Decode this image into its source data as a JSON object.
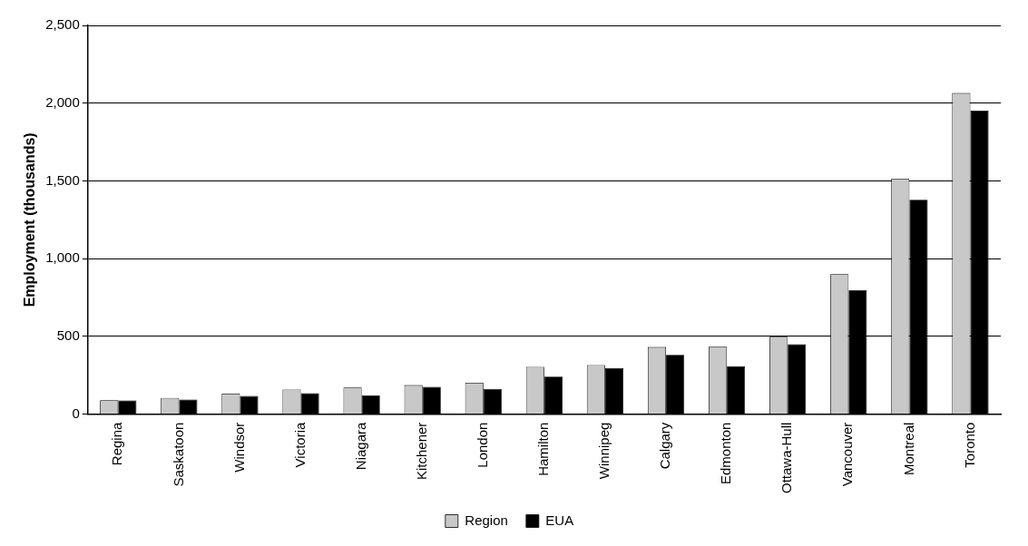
{
  "chart_data": {
    "type": "bar",
    "ylabel": "Employment (thousands)",
    "categories": [
      "Regina",
      "Saskatoon",
      "Windsor",
      "Victoria",
      "Niagara",
      "Kitchener",
      "London",
      "Hamilton",
      "Winnipeg",
      "Calgary",
      "Edmonton",
      "Ottawa-Hull",
      "Vancouver",
      "Montreal",
      "Toronto"
    ],
    "series": [
      {
        "name": "Region",
        "color": "#c8c8c8",
        "values": [
          90,
          104,
          133,
          159,
          172,
          187,
          202,
          304,
          316,
          432,
          434,
          498,
          901,
          1515,
          2065
        ]
      },
      {
        "name": "EUA",
        "color": "#000000",
        "values": [
          88,
          94,
          117,
          135,
          122,
          176,
          163,
          241,
          295,
          382,
          308,
          450,
          797,
          1379,
          1952
        ]
      }
    ],
    "ylim": [
      0,
      2500
    ],
    "yticks": [
      0,
      500,
      {
        "value": 1000,
        "label": "1,000"
      },
      {
        "value": 1500,
        "label": "1,500"
      },
      {
        "value": 2000,
        "label": "2,000"
      },
      {
        "value": 2500,
        "label": "2,500"
      }
    ],
    "grid": "y",
    "legend": "bottom"
  }
}
